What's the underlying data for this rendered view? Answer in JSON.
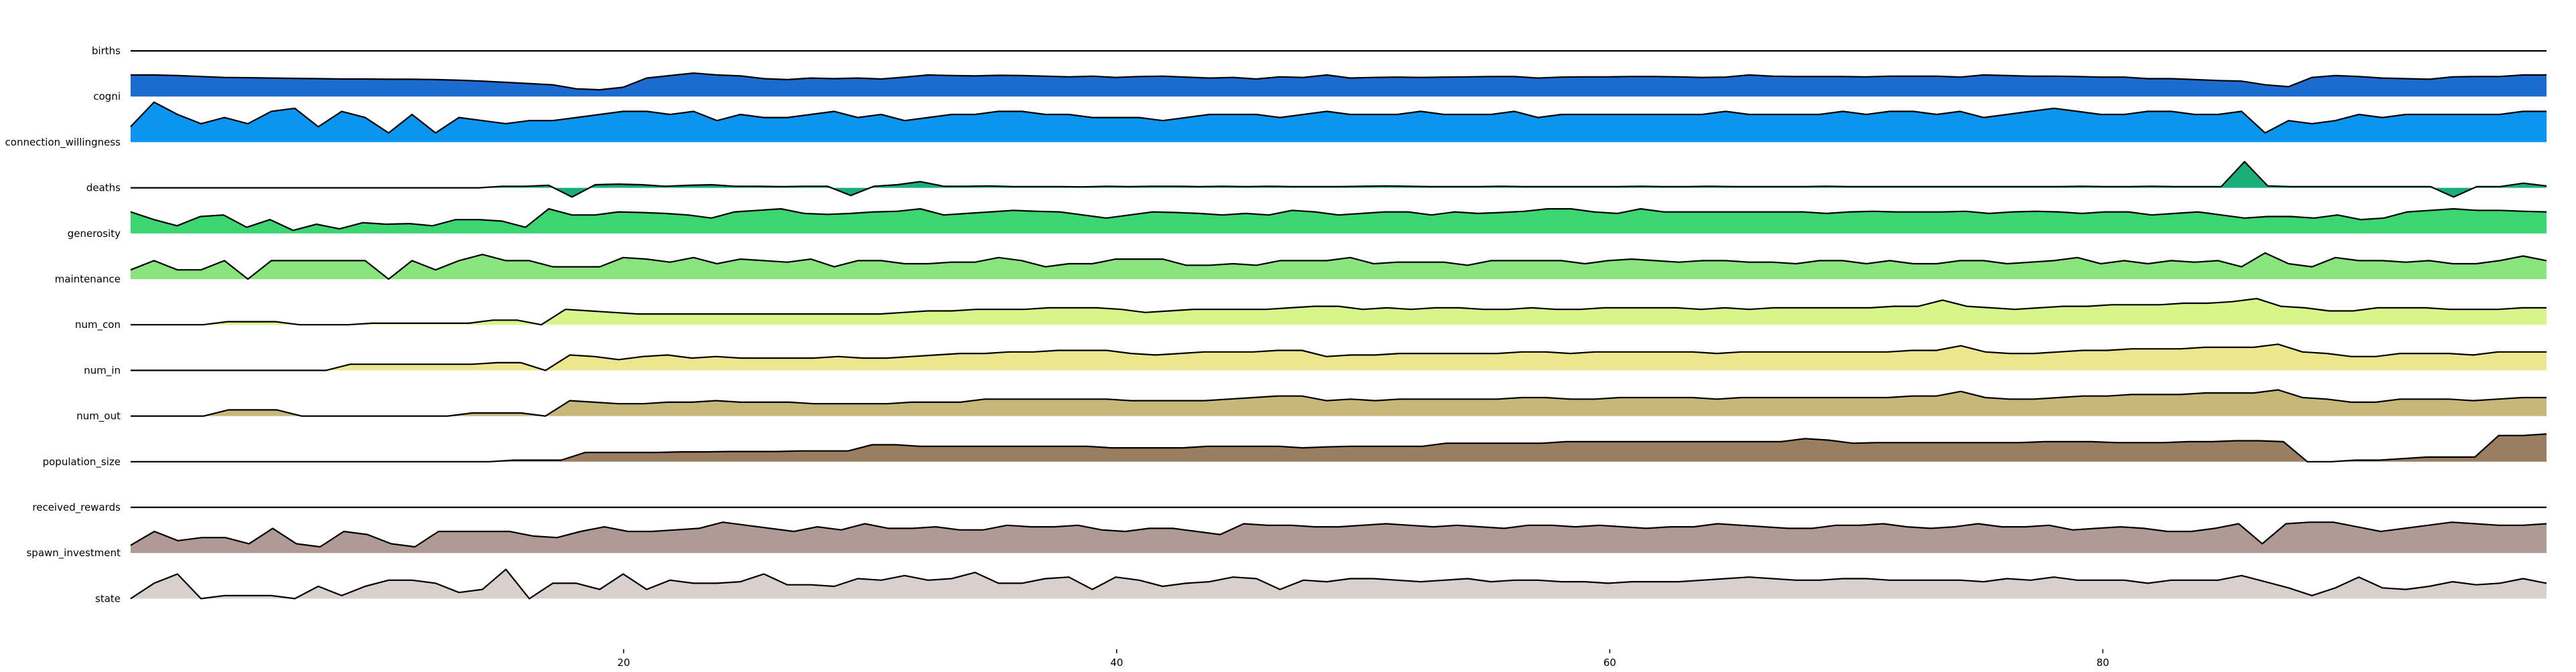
{
  "chart_data": {
    "type": "area",
    "title": "",
    "xlabel": "",
    "ylabel": "",
    "xlim": [
      0,
      98
    ],
    "x_ticks": [
      20,
      40,
      60,
      80
    ],
    "grid": false,
    "legend": "none",
    "series": [
      {
        "name": "births",
        "color": "#1a5fb4",
        "values": [
          0
        ]
      },
      {
        "name": "cogni",
        "color": "#1c6bd1",
        "values": [
          0.7,
          0.7,
          0.68,
          0.65,
          0.62,
          0.61,
          0.6,
          0.59,
          0.58,
          0.57,
          0.57,
          0.56,
          0.56,
          0.55,
          0.53,
          0.5,
          0.46,
          0.42,
          0.38,
          0.25,
          0.22,
          0.3,
          0.6,
          0.68,
          0.76,
          0.7,
          0.67,
          0.58,
          0.55,
          0.6,
          0.58,
          0.6,
          0.57,
          0.63,
          0.7,
          0.68,
          0.67,
          0.69,
          0.68,
          0.66,
          0.64,
          0.66,
          0.62,
          0.65,
          0.66,
          0.63,
          0.6,
          0.62,
          0.57,
          0.64,
          0.62,
          0.7,
          0.6,
          0.62,
          0.63,
          0.62,
          0.63,
          0.64,
          0.65,
          0.65,
          0.6,
          0.63,
          0.64,
          0.64,
          0.65,
          0.65,
          0.64,
          0.62,
          0.63,
          0.7,
          0.66,
          0.65,
          0.65,
          0.65,
          0.64,
          0.66,
          0.66,
          0.66,
          0.63,
          0.7,
          0.68,
          0.66,
          0.66,
          0.65,
          0.63,
          0.63,
          0.58,
          0.58,
          0.55,
          0.52,
          0.5,
          0.38,
          0.32,
          0.62,
          0.68,
          0.65,
          0.6,
          0.58,
          0.56,
          0.64,
          0.65,
          0.65,
          0.7,
          0.7
        ]
      },
      {
        "name": "connection_willingness",
        "color": "#0a96f0",
        "values": [
          0.5,
          1.3,
          0.9,
          0.6,
          0.8,
          0.6,
          1.0,
          1.1,
          0.5,
          1.0,
          0.8,
          0.3,
          0.9,
          0.3,
          0.8,
          0.7,
          0.6,
          0.7,
          0.7,
          0.8,
          0.9,
          1.0,
          1.0,
          0.9,
          1.0,
          0.7,
          0.9,
          0.8,
          0.8,
          0.9,
          1.0,
          0.8,
          0.9,
          0.7,
          0.8,
          0.9,
          0.9,
          1.0,
          1.0,
          0.9,
          0.9,
          0.8,
          0.8,
          0.8,
          0.7,
          0.8,
          0.9,
          0.9,
          0.9,
          0.8,
          0.9,
          1.0,
          0.9,
          0.9,
          0.9,
          1.0,
          0.9,
          0.9,
          0.9,
          1.0,
          0.8,
          0.9,
          0.9,
          0.9,
          0.9,
          0.9,
          0.9,
          0.9,
          1.0,
          0.9,
          0.9,
          0.9,
          0.9,
          1.0,
          0.9,
          1.0,
          1.0,
          0.9,
          1.0,
          0.8,
          0.9,
          1.0,
          1.1,
          1.0,
          0.9,
          0.9,
          1.0,
          1.0,
          0.9,
          0.9,
          1.0,
          0.3,
          0.7,
          0.6,
          0.7,
          0.9,
          0.8,
          0.9,
          0.9,
          0.9,
          0.9,
          0.9,
          1.0,
          1.0
        ]
      },
      {
        "name": "deaths",
        "color": "#1aaf7a",
        "values": [
          0,
          0,
          0,
          0,
          0,
          0,
          0,
          0,
          0,
          0,
          0,
          0,
          0,
          0,
          0,
          0,
          0.05,
          0.05,
          0.08,
          -0.3,
          0.1,
          0.12,
          0.1,
          0.05,
          0.08,
          0.1,
          0.05,
          0.05,
          0.04,
          0.05,
          0.05,
          -0.25,
          0.05,
          0.1,
          0.2,
          0.05,
          0.05,
          0.06,
          0.04,
          0.04,
          0.04,
          0.03,
          0.05,
          0.04,
          0.05,
          0.05,
          0.04,
          0.05,
          0.04,
          0.05,
          0.04,
          0.04,
          0.04,
          0.05,
          0.06,
          0.05,
          0.04,
          0.04,
          0.04,
          0.05,
          0.04,
          0.04,
          0.04,
          0.04,
          0.04,
          0.05,
          0.04,
          0.04,
          0.05,
          0.04,
          0.04,
          0.04,
          0.04,
          0.05,
          0.04,
          0.04,
          0.04,
          0.04,
          0.04,
          0.04,
          0.04,
          0.04,
          0.04,
          0.04,
          0.05,
          0.04,
          0.04,
          0.05,
          0.04,
          0.04,
          0.04,
          0.85,
          0.06,
          0.04,
          0.04,
          0.04,
          0.04,
          0.04,
          0.04,
          0.04,
          -0.3,
          0.04,
          0.04,
          0.15,
          0.06
        ]
      },
      {
        "name": "generosity",
        "color": "#3bd672",
        "values": [
          0.7,
          0.45,
          0.25,
          0.55,
          0.6,
          0.2,
          0.45,
          0.1,
          0.3,
          0.15,
          0.35,
          0.3,
          0.32,
          0.25,
          0.45,
          0.45,
          0.4,
          0.2,
          0.8,
          0.6,
          0.6,
          0.7,
          0.68,
          0.65,
          0.6,
          0.5,
          0.7,
          0.75,
          0.8,
          0.65,
          0.62,
          0.65,
          0.7,
          0.72,
          0.8,
          0.6,
          0.65,
          0.7,
          0.75,
          0.72,
          0.7,
          0.6,
          0.5,
          0.6,
          0.7,
          0.68,
          0.65,
          0.6,
          0.65,
          0.6,
          0.75,
          0.7,
          0.6,
          0.65,
          0.7,
          0.7,
          0.6,
          0.7,
          0.65,
          0.68,
          0.72,
          0.8,
          0.8,
          0.7,
          0.65,
          0.8,
          0.7,
          0.7,
          0.7,
          0.7,
          0.7,
          0.7,
          0.7,
          0.65,
          0.7,
          0.72,
          0.7,
          0.7,
          0.7,
          0.72,
          0.65,
          0.7,
          0.72,
          0.7,
          0.65,
          0.7,
          0.7,
          0.6,
          0.65,
          0.7,
          0.6,
          0.5,
          0.55,
          0.55,
          0.5,
          0.6,
          0.45,
          0.5,
          0.7,
          0.75,
          0.8,
          0.75,
          0.75,
          0.72,
          0.7
        ]
      },
      {
        "name": "maintenance",
        "color": "#88e47c",
        "values": [
          0.3,
          0.6,
          0.3,
          0.3,
          0.6,
          0.0,
          0.6,
          0.6,
          0.6,
          0.6,
          0.6,
          0.0,
          0.6,
          0.3,
          0.6,
          0.8,
          0.6,
          0.6,
          0.4,
          0.4,
          0.4,
          0.7,
          0.65,
          0.55,
          0.7,
          0.5,
          0.65,
          0.6,
          0.55,
          0.65,
          0.4,
          0.6,
          0.6,
          0.5,
          0.5,
          0.55,
          0.55,
          0.7,
          0.6,
          0.4,
          0.5,
          0.5,
          0.65,
          0.65,
          0.65,
          0.45,
          0.45,
          0.5,
          0.45,
          0.6,
          0.6,
          0.6,
          0.7,
          0.5,
          0.55,
          0.55,
          0.55,
          0.45,
          0.6,
          0.6,
          0.6,
          0.6,
          0.5,
          0.6,
          0.65,
          0.6,
          0.55,
          0.6,
          0.6,
          0.55,
          0.55,
          0.5,
          0.6,
          0.6,
          0.5,
          0.6,
          0.5,
          0.5,
          0.6,
          0.6,
          0.5,
          0.55,
          0.6,
          0.7,
          0.5,
          0.6,
          0.5,
          0.6,
          0.55,
          0.6,
          0.4,
          0.85,
          0.5,
          0.4,
          0.7,
          0.6,
          0.6,
          0.55,
          0.6,
          0.5,
          0.5,
          0.6,
          0.75,
          0.6
        ]
      },
      {
        "name": "num_con",
        "color": "#d8f58c",
        "values": [
          0,
          0,
          0,
          0,
          0.1,
          0.1,
          0.1,
          0,
          0,
          0,
          0.05,
          0.05,
          0.05,
          0.05,
          0.05,
          0.15,
          0.15,
          0,
          0.5,
          0.45,
          0.4,
          0.35,
          0.35,
          0.35,
          0.35,
          0.35,
          0.35,
          0.35,
          0.35,
          0.35,
          0.35,
          0.35,
          0.4,
          0.45,
          0.45,
          0.5,
          0.5,
          0.5,
          0.55,
          0.55,
          0.55,
          0.5,
          0.4,
          0.45,
          0.5,
          0.5,
          0.5,
          0.5,
          0.55,
          0.6,
          0.6,
          0.5,
          0.55,
          0.5,
          0.55,
          0.55,
          0.5,
          0.5,
          0.55,
          0.5,
          0.5,
          0.55,
          0.55,
          0.55,
          0.55,
          0.5,
          0.55,
          0.5,
          0.55,
          0.55,
          0.55,
          0.55,
          0.55,
          0.6,
          0.6,
          0.8,
          0.6,
          0.55,
          0.5,
          0.55,
          0.6,
          0.6,
          0.65,
          0.65,
          0.65,
          0.7,
          0.7,
          0.75,
          0.85,
          0.6,
          0.55,
          0.45,
          0.45,
          0.55,
          0.55,
          0.55,
          0.5,
          0.5,
          0.5,
          0.55,
          0.55
        ]
      },
      {
        "name": "num_in",
        "color": "#ece78c",
        "values": [
          0,
          0,
          0,
          0,
          0,
          0,
          0,
          0,
          0,
          0.2,
          0.2,
          0.2,
          0.2,
          0.2,
          0.2,
          0.25,
          0.25,
          0,
          0.5,
          0.45,
          0.35,
          0.45,
          0.5,
          0.4,
          0.45,
          0.4,
          0.4,
          0.4,
          0.4,
          0.45,
          0.4,
          0.4,
          0.45,
          0.5,
          0.55,
          0.55,
          0.6,
          0.6,
          0.65,
          0.65,
          0.65,
          0.55,
          0.5,
          0.55,
          0.6,
          0.6,
          0.6,
          0.65,
          0.65,
          0.45,
          0.5,
          0.5,
          0.55,
          0.55,
          0.55,
          0.55,
          0.55,
          0.6,
          0.6,
          0.55,
          0.6,
          0.6,
          0.6,
          0.6,
          0.6,
          0.55,
          0.6,
          0.6,
          0.6,
          0.6,
          0.6,
          0.6,
          0.6,
          0.65,
          0.65,
          0.8,
          0.6,
          0.55,
          0.55,
          0.6,
          0.65,
          0.65,
          0.7,
          0.7,
          0.7,
          0.75,
          0.75,
          0.75,
          0.85,
          0.6,
          0.55,
          0.45,
          0.45,
          0.55,
          0.55,
          0.55,
          0.5,
          0.6,
          0.6,
          0.6
        ]
      },
      {
        "name": "num_out",
        "color": "#c7b87a",
        "values": [
          0,
          0,
          0,
          0,
          0.2,
          0.2,
          0.2,
          0,
          0,
          0,
          0,
          0,
          0,
          0,
          0.1,
          0.1,
          0.1,
          0,
          0.5,
          0.45,
          0.4,
          0.4,
          0.45,
          0.45,
          0.5,
          0.45,
          0.45,
          0.45,
          0.4,
          0.4,
          0.4,
          0.4,
          0.45,
          0.45,
          0.45,
          0.55,
          0.55,
          0.55,
          0.55,
          0.55,
          0.55,
          0.5,
          0.5,
          0.5,
          0.5,
          0.55,
          0.6,
          0.65,
          0.65,
          0.5,
          0.55,
          0.5,
          0.55,
          0.55,
          0.55,
          0.55,
          0.55,
          0.6,
          0.6,
          0.55,
          0.55,
          0.6,
          0.6,
          0.6,
          0.6,
          0.55,
          0.6,
          0.6,
          0.6,
          0.6,
          0.6,
          0.6,
          0.6,
          0.65,
          0.65,
          0.8,
          0.6,
          0.55,
          0.55,
          0.6,
          0.65,
          0.65,
          0.7,
          0.7,
          0.7,
          0.75,
          0.75,
          0.75,
          0.85,
          0.6,
          0.55,
          0.45,
          0.45,
          0.55,
          0.55,
          0.55,
          0.5,
          0.55,
          0.6,
          0.6
        ]
      },
      {
        "name": "population_size",
        "color": "#9b7e60",
        "values": [
          0,
          0,
          0,
          0,
          0,
          0,
          0,
          0,
          0,
          0,
          0,
          0,
          0,
          0,
          0,
          0,
          0.05,
          0.05,
          0.05,
          0.3,
          0.3,
          0.3,
          0.3,
          0.32,
          0.32,
          0.33,
          0.33,
          0.33,
          0.35,
          0.35,
          0.35,
          0.55,
          0.55,
          0.5,
          0.5,
          0.5,
          0.5,
          0.5,
          0.5,
          0.5,
          0.5,
          0.45,
          0.45,
          0.45,
          0.45,
          0.5,
          0.5,
          0.5,
          0.5,
          0.45,
          0.48,
          0.5,
          0.5,
          0.5,
          0.5,
          0.6,
          0.6,
          0.6,
          0.6,
          0.6,
          0.65,
          0.65,
          0.65,
          0.65,
          0.65,
          0.65,
          0.65,
          0.65,
          0.65,
          0.65,
          0.75,
          0.7,
          0.6,
          0.62,
          0.62,
          0.62,
          0.62,
          0.62,
          0.62,
          0.62,
          0.65,
          0.65,
          0.65,
          0.62,
          0.62,
          0.62,
          0.65,
          0.65,
          0.68,
          0.68,
          0.65,
          0.0,
          0.0,
          0.05,
          0.05,
          0.1,
          0.15,
          0.15,
          0.15,
          0.85,
          0.85,
          0.9
        ]
      },
      {
        "name": "received_rewards",
        "color": "#8c8c8c",
        "values": [
          0
        ]
      },
      {
        "name": "spawn_investment",
        "color": "#b09b94",
        "values": [
          0.25,
          0.7,
          0.4,
          0.5,
          0.5,
          0.3,
          0.8,
          0.3,
          0.2,
          0.7,
          0.6,
          0.3,
          0.2,
          0.7,
          0.7,
          0.7,
          0.7,
          0.55,
          0.5,
          0.7,
          0.85,
          0.7,
          0.7,
          0.75,
          0.8,
          1.0,
          0.9,
          0.8,
          0.7,
          0.85,
          0.75,
          0.95,
          0.8,
          0.8,
          0.85,
          0.75,
          0.75,
          0.9,
          0.85,
          0.85,
          0.9,
          0.75,
          0.7,
          0.8,
          0.8,
          0.7,
          0.6,
          0.95,
          0.9,
          0.9,
          0.85,
          0.85,
          0.9,
          0.95,
          0.9,
          0.85,
          0.9,
          0.85,
          0.8,
          0.9,
          0.9,
          0.85,
          0.9,
          0.85,
          0.8,
          0.85,
          0.85,
          0.95,
          0.9,
          0.85,
          0.8,
          0.8,
          0.9,
          0.9,
          0.95,
          0.85,
          0.8,
          0.85,
          0.95,
          0.85,
          0.85,
          0.9,
          0.75,
          0.8,
          0.85,
          0.8,
          0.7,
          0.7,
          0.8,
          0.95,
          0.3,
          0.95,
          1.0,
          1.0,
          0.85,
          0.7,
          0.8,
          0.9,
          1.0,
          0.95,
          0.9,
          0.9,
          0.95
        ]
      },
      {
        "name": "state",
        "color": "#d9cfcc",
        "values": [
          0.0,
          0.5,
          0.8,
          0.0,
          0.1,
          0.1,
          0.1,
          0.0,
          0.4,
          0.1,
          0.4,
          0.6,
          0.6,
          0.5,
          0.2,
          0.3,
          0.95,
          0.0,
          0.5,
          0.5,
          0.3,
          0.8,
          0.3,
          0.6,
          0.5,
          0.5,
          0.55,
          0.8,
          0.45,
          0.45,
          0.4,
          0.65,
          0.6,
          0.75,
          0.6,
          0.65,
          0.85,
          0.5,
          0.5,
          0.65,
          0.7,
          0.3,
          0.7,
          0.6,
          0.4,
          0.5,
          0.55,
          0.7,
          0.65,
          0.3,
          0.6,
          0.55,
          0.65,
          0.65,
          0.6,
          0.55,
          0.6,
          0.65,
          0.55,
          0.6,
          0.6,
          0.55,
          0.55,
          0.5,
          0.55,
          0.55,
          0.55,
          0.6,
          0.65,
          0.7,
          0.65,
          0.6,
          0.6,
          0.65,
          0.65,
          0.6,
          0.6,
          0.6,
          0.6,
          0.55,
          0.65,
          0.6,
          0.7,
          0.6,
          0.6,
          0.6,
          0.5,
          0.6,
          0.6,
          0.6,
          0.75,
          0.55,
          0.35,
          0.1,
          0.35,
          0.7,
          0.35,
          0.3,
          0.4,
          0.55,
          0.45,
          0.5,
          0.65,
          0.5
        ]
      }
    ]
  }
}
